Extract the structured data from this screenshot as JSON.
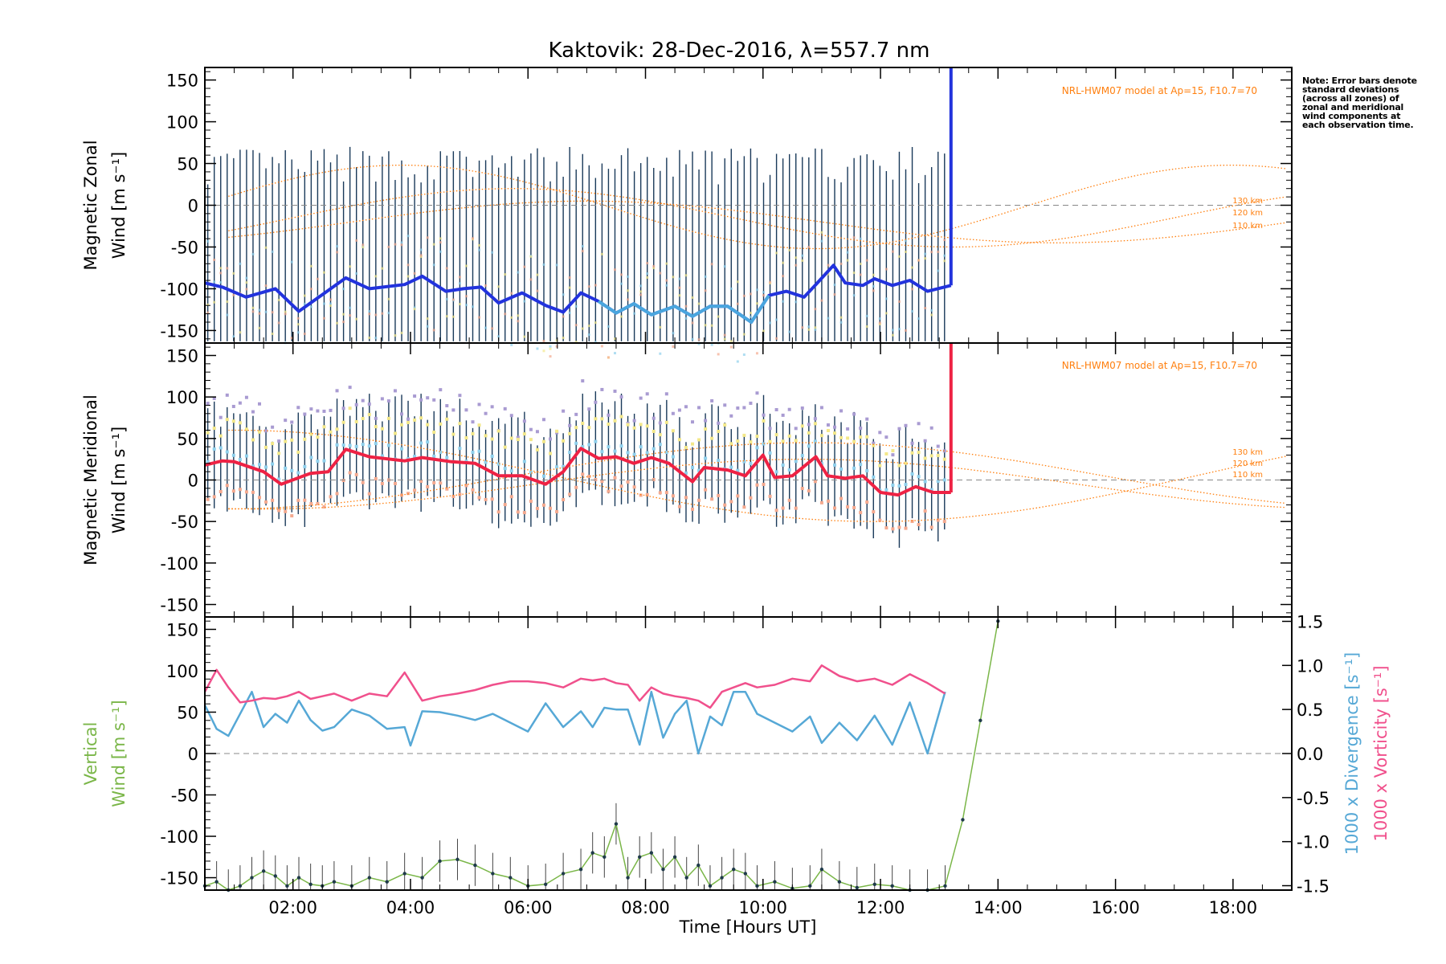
{
  "title": "Kaktovik: 28-Dec-2016, λ=557.7 nm",
  "note": "Note: Error bars denote standard deviations (across all zones) of zonal and meridional wind components at each observation time.",
  "colors": {
    "zonal_line": "#2233dd",
    "zonal_line_light": "#4aa6de",
    "meridional_line": "#ee2244",
    "model": "#ff7f0e",
    "vertical": "#7ab648",
    "divergence": "#56a8d6",
    "vorticity": "#f0508c",
    "zero_line": "#888888",
    "error_bar": "#1a3a5a",
    "scatter_purple": "#a99bd2",
    "scatter_yellow": "#f3e88a",
    "scatter_salmon": "#f4a98f",
    "scatter_cyan": "#8fd0ec"
  },
  "chart_data": [
    {
      "type": "line",
      "panel": "zonal",
      "ylabel": [
        "Magnetic Zonal",
        "Wind [m s⁻¹]"
      ],
      "ylim": [
        -165,
        165
      ],
      "yticks": [
        150,
        100,
        50,
        0,
        -50,
        -100,
        -150
      ],
      "xlim": [
        0.5,
        19.0
      ],
      "model_label": "NRL-HWM07 model at Ap=15, F10.7=70",
      "altitude_labels": [
        "130 km",
        "120 km",
        "110 km"
      ],
      "mean_wind": {
        "x": [
          0.5,
          0.8,
          1.2,
          1.7,
          2.1,
          2.5,
          2.9,
          3.3,
          3.9,
          4.2,
          4.6,
          4.9,
          5.2,
          5.5,
          5.9,
          6.3,
          6.6,
          6.9,
          7.2,
          7.5,
          7.8,
          8.1,
          8.5,
          8.8,
          9.1,
          9.4,
          9.8,
          10.1,
          10.4,
          10.7,
          10.9,
          11.2,
          11.4,
          11.7,
          11.9,
          12.2,
          12.5,
          12.8,
          13.2
        ],
        "y": [
          -93,
          -98,
          -110,
          -100,
          -127,
          -107,
          -87,
          -100,
          -95,
          -85,
          -103,
          -100,
          -98,
          -117,
          -105,
          -120,
          -128,
          -105,
          -115,
          -129,
          -118,
          -131,
          -121,
          -133,
          -121,
          -121,
          -140,
          -108,
          -103,
          -110,
          -95,
          -72,
          -93,
          -96,
          -88,
          -96,
          -90,
          -103,
          -96
        ]
      },
      "vertical_bar_x": 13.2
    },
    {
      "type": "line",
      "panel": "meridional",
      "ylabel": [
        "Magnetic Meridional",
        "Wind [m s⁻¹]"
      ],
      "ylim": [
        -165,
        165
      ],
      "yticks": [
        150,
        100,
        50,
        0,
        -50,
        -100,
        -150
      ],
      "xlim": [
        0.5,
        19.0
      ],
      "model_label": "NRL-HWM07 model at Ap=15, F10.7=70",
      "altitude_labels": [
        "130 km",
        "120 km",
        "110 km"
      ],
      "mean_wind": {
        "x": [
          0.5,
          0.8,
          1.0,
          1.5,
          1.8,
          2.3,
          2.6,
          2.9,
          3.3,
          3.9,
          4.2,
          4.7,
          5.1,
          5.5,
          5.9,
          6.3,
          6.6,
          6.9,
          7.2,
          7.5,
          7.8,
          8.1,
          8.4,
          8.8,
          9.0,
          9.4,
          9.7,
          10.0,
          10.2,
          10.5,
          10.9,
          11.1,
          11.4,
          11.7,
          12.0,
          12.3,
          12.6,
          12.9,
          13.2
        ],
        "y": [
          18,
          23,
          22,
          10,
          -5,
          8,
          10,
          37,
          28,
          23,
          27,
          22,
          20,
          5,
          5,
          -5,
          10,
          38,
          26,
          28,
          20,
          27,
          20,
          -2,
          15,
          12,
          5,
          30,
          3,
          5,
          28,
          5,
          2,
          5,
          -15,
          -18,
          -8,
          -15,
          -15
        ]
      },
      "vertical_bar_x": 13.2
    },
    {
      "type": "line",
      "panel": "vertical",
      "ylabel": [
        "Vertical",
        "Wind [m s⁻¹]"
      ],
      "y2label_divergence": "1000 x Divergence [s⁻¹]",
      "y2label_vorticity": "1000 x Vorticity [s⁻¹]",
      "ylim": [
        -165,
        165
      ],
      "y2lim": [
        -1.55,
        1.55
      ],
      "yticks": [
        150,
        100,
        50,
        0,
        -50,
        -100,
        -150
      ],
      "y2ticks": [
        "1.5",
        "1.0",
        "0.5",
        "0.0",
        "-0.5",
        "-1.0",
        "-1.5"
      ],
      "xlim": [
        0.5,
        19.0
      ],
      "xticks": [
        "02:00",
        "04:00",
        "06:00",
        "08:00",
        "10:00",
        "12:00",
        "14:00",
        "16:00",
        "18:00"
      ],
      "xlabel": "Time [Hours UT]",
      "series": [
        {
          "name": "Vertical",
          "x": [
            0.5,
            0.7,
            0.9,
            1.1,
            1.3,
            1.5,
            1.7,
            1.9,
            2.1,
            2.3,
            2.5,
            2.7,
            3.0,
            3.3,
            3.6,
            3.9,
            4.2,
            4.5,
            4.8,
            5.1,
            5.4,
            5.7,
            6.0,
            6.3,
            6.6,
            6.9,
            7.1,
            7.3,
            7.5,
            7.7,
            7.9,
            8.1,
            8.3,
            8.5,
            8.7,
            8.9,
            9.1,
            9.3,
            9.5,
            9.7,
            9.9,
            10.2,
            10.5,
            10.8,
            11.0,
            11.3,
            11.6,
            11.9,
            12.2,
            12.5,
            12.8,
            13.1,
            13.4,
            13.7,
            14.0
          ],
          "y": [
            -160,
            -155,
            -165,
            -160,
            -150,
            -142,
            -148,
            -160,
            -150,
            -158,
            -160,
            -155,
            -160,
            -150,
            -155,
            -145,
            -150,
            -130,
            -128,
            -135,
            -145,
            -150,
            -160,
            -158,
            -145,
            -140,
            -120,
            -125,
            -85,
            -150,
            -125,
            -120,
            -140,
            -125,
            -150,
            -135,
            -160,
            -150,
            -140,
            -145,
            -160,
            -155,
            -163,
            -160,
            -140,
            -155,
            -162,
            -158,
            -160,
            -165,
            -165,
            -160,
            -80,
            40,
            160
          ]
        },
        {
          "name": "Divergence",
          "x": [
            0.5,
            0.7,
            0.9,
            1.1,
            1.3,
            1.5,
            1.7,
            1.9,
            2.1,
            2.3,
            2.5,
            2.7,
            3.0,
            3.3,
            3.6,
            3.9,
            4.0,
            4.2,
            4.5,
            4.8,
            5.1,
            5.4,
            5.7,
            6.0,
            6.3,
            6.6,
            6.9,
            7.1,
            7.3,
            7.5,
            7.7,
            7.9,
            8.1,
            8.3,
            8.5,
            8.7,
            8.9,
            9.1,
            9.3,
            9.5,
            9.7,
            9.9,
            10.2,
            10.5,
            10.8,
            11.0,
            11.3,
            11.6,
            11.9,
            12.2,
            12.5,
            12.8,
            13.1
          ],
          "y": [
            0.55,
            0.28,
            0.2,
            0.45,
            0.7,
            0.3,
            0.45,
            0.35,
            0.6,
            0.38,
            0.26,
            0.3,
            0.5,
            0.43,
            0.28,
            0.3,
            0.09,
            0.48,
            0.47,
            0.43,
            0.38,
            0.45,
            0.35,
            0.25,
            0.57,
            0.3,
            0.48,
            0.3,
            0.52,
            0.5,
            0.5,
            0.1,
            0.7,
            0.18,
            0.45,
            0.6,
            0.0,
            0.42,
            0.32,
            0.7,
            0.7,
            0.45,
            0.35,
            0.25,
            0.42,
            0.12,
            0.35,
            0.15,
            0.43,
            0.1,
            0.58,
            0.0,
            0.7
          ]
        },
        {
          "name": "Vorticity",
          "x": [
            0.5,
            0.7,
            0.9,
            1.1,
            1.3,
            1.5,
            1.7,
            1.9,
            2.1,
            2.3,
            2.5,
            2.7,
            3.0,
            3.3,
            3.6,
            3.9,
            4.2,
            4.5,
            4.8,
            5.1,
            5.4,
            5.7,
            6.0,
            6.3,
            6.6,
            6.9,
            7.1,
            7.3,
            7.5,
            7.7,
            7.9,
            8.1,
            8.3,
            8.5,
            8.7,
            8.9,
            9.1,
            9.3,
            9.5,
            9.7,
            9.9,
            10.2,
            10.5,
            10.8,
            11.0,
            11.3,
            11.6,
            11.9,
            12.2,
            12.5,
            12.8,
            13.1
          ],
          "y": [
            0.7,
            0.95,
            0.75,
            0.58,
            0.6,
            0.63,
            0.62,
            0.65,
            0.7,
            0.62,
            0.65,
            0.68,
            0.6,
            0.68,
            0.65,
            0.92,
            0.6,
            0.65,
            0.68,
            0.72,
            0.78,
            0.82,
            0.82,
            0.8,
            0.75,
            0.85,
            0.83,
            0.85,
            0.8,
            0.78,
            0.6,
            0.75,
            0.68,
            0.65,
            0.63,
            0.6,
            0.52,
            0.7,
            0.75,
            0.8,
            0.75,
            0.78,
            0.85,
            0.82,
            1.0,
            0.88,
            0.82,
            0.85,
            0.78,
            0.9,
            0.8,
            0.68
          ]
        }
      ]
    }
  ]
}
